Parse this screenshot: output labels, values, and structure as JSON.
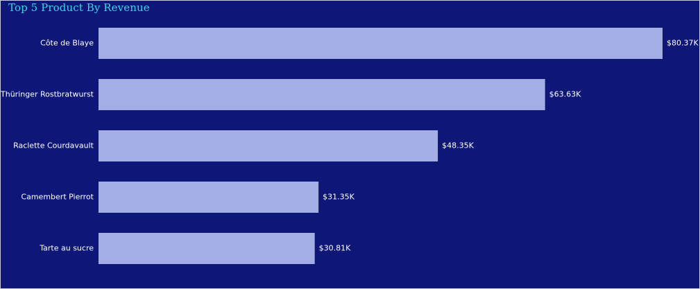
{
  "chart_data": {
    "type": "bar",
    "orientation": "horizontal",
    "title": "Top 5 Product By Revenue",
    "categories": [
      "Côte de Blaye",
      "Thüringer Rostbratwurst",
      "Raclette Courdavault",
      "Camembert Pierrot",
      "Tarte au sucre"
    ],
    "values": [
      80370,
      63630,
      48350,
      31350,
      30810
    ],
    "data_labels": [
      "$80.37K",
      "$63.63K",
      "$48.35K",
      "$31.35K",
      "$30.81K"
    ],
    "xlim": [
      0,
      80370
    ],
    "grid": false,
    "legend": "none",
    "colors": {
      "background": "#0e1778",
      "bar": "#a3ade6",
      "title": "#3fd2e6",
      "text": "#ffffff"
    }
  }
}
